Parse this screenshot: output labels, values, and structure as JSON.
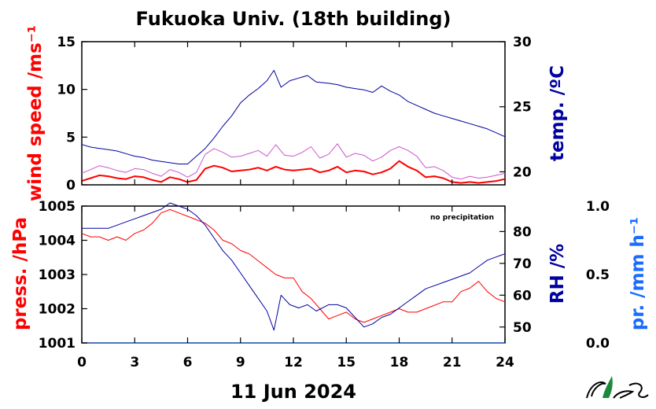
{
  "title": "Fukuoka Univ. (18th building)",
  "date": "11 Jun 2024",
  "note": "no precipitation",
  "colors": {
    "wind": "#ff0000",
    "wind_gust": "#cc55cc",
    "temp": "#00009f",
    "press": "#ff0000",
    "rh": "#00009f",
    "precip": "#1a6cff"
  },
  "chart_data": [
    {
      "type": "line",
      "title": "",
      "xlabel": "",
      "x_ticks": [
        0,
        3,
        6,
        9,
        12,
        15,
        18,
        21,
        24
      ],
      "xlim": [
        0,
        24
      ],
      "left_axis": {
        "label": "wind speed /ms⁻¹",
        "ylim": [
          0,
          15
        ],
        "ticks": [
          0,
          5,
          10,
          15
        ]
      },
      "right_axis": {
        "label": "temp. /ºC",
        "ylim": [
          19,
          30
        ],
        "ticks": [
          20,
          25,
          30
        ]
      },
      "series": [
        {
          "name": "wind speed (mean)",
          "axis": "left",
          "x": [
            0,
            0.5,
            1,
            1.5,
            2,
            2.5,
            3,
            3.5,
            4,
            4.5,
            5,
            5.5,
            6,
            6.5,
            7,
            7.5,
            8,
            8.5,
            9,
            9.5,
            10,
            10.5,
            11,
            11.5,
            12,
            12.5,
            13,
            13.5,
            14,
            14.5,
            15,
            15.5,
            16,
            16.5,
            17,
            17.5,
            18,
            18.5,
            19,
            19.5,
            20,
            20.5,
            21,
            21.5,
            22,
            22.5,
            23,
            23.5,
            24
          ],
          "values": [
            0.4,
            0.7,
            1.0,
            0.9,
            0.7,
            0.6,
            0.9,
            0.8,
            0.5,
            0.3,
            0.8,
            0.6,
            0.3,
            0.5,
            1.7,
            2.0,
            1.8,
            1.4,
            1.5,
            1.6,
            1.8,
            1.5,
            1.9,
            1.6,
            1.5,
            1.6,
            1.7,
            1.3,
            1.5,
            1.9,
            1.3,
            1.5,
            1.4,
            1.1,
            1.3,
            1.7,
            2.5,
            1.9,
            1.5,
            0.8,
            0.9,
            0.7,
            0.3,
            0.2,
            0.3,
            0.2,
            0.3,
            0.4,
            0.6
          ]
        },
        {
          "name": "wind speed (gust)",
          "axis": "left",
          "x": [
            0,
            0.5,
            1,
            1.5,
            2,
            2.5,
            3,
            3.5,
            4,
            4.5,
            5,
            5.5,
            6,
            6.5,
            7,
            7.5,
            8,
            8.5,
            9,
            9.5,
            10,
            10.5,
            11,
            11.5,
            12,
            12.5,
            13,
            13.5,
            14,
            14.5,
            15,
            15.5,
            16,
            16.5,
            17,
            17.5,
            18,
            18.5,
            19,
            19.5,
            20,
            20.5,
            21,
            21.5,
            22,
            22.5,
            23,
            23.5,
            24
          ],
          "values": [
            1.2,
            1.6,
            2.0,
            1.8,
            1.5,
            1.3,
            1.7,
            1.6,
            1.2,
            0.9,
            1.6,
            1.3,
            0.8,
            1.3,
            3.2,
            3.8,
            3.4,
            2.9,
            3.0,
            3.3,
            3.6,
            3.0,
            4.2,
            3.1,
            3.0,
            3.4,
            4.0,
            2.8,
            3.2,
            4.3,
            2.9,
            3.3,
            3.1,
            2.5,
            2.9,
            3.6,
            4.0,
            3.6,
            3.0,
            1.8,
            1.9,
            1.5,
            0.8,
            0.6,
            0.9,
            0.7,
            0.8,
            1.0,
            1.2
          ]
        },
        {
          "name": "temperature",
          "axis": "right",
          "x": [
            0,
            0.5,
            1,
            1.5,
            2,
            2.5,
            3,
            3.5,
            4,
            4.5,
            5,
            5.5,
            6,
            6.5,
            7,
            7.5,
            8,
            8.5,
            9,
            9.5,
            10,
            10.5,
            10.9,
            11.3,
            11.8,
            12.3,
            12.8,
            13.3,
            14,
            14.5,
            15,
            15.5,
            16,
            16.5,
            17,
            17.5,
            18,
            18.5,
            19,
            19.5,
            20,
            20.5,
            21,
            21.5,
            22,
            22.5,
            23,
            23.5,
            24
          ],
          "values": [
            22.1,
            21.9,
            21.8,
            21.7,
            21.6,
            21.4,
            21.2,
            21.1,
            20.9,
            20.8,
            20.7,
            20.6,
            20.6,
            21.2,
            21.8,
            22.6,
            23.5,
            24.3,
            25.3,
            25.9,
            26.4,
            27.0,
            27.8,
            26.5,
            27.0,
            27.2,
            27.4,
            26.9,
            26.8,
            26.7,
            26.5,
            26.4,
            26.3,
            26.1,
            26.6,
            26.2,
            25.9,
            25.4,
            25.1,
            24.8,
            24.5,
            24.3,
            24.1,
            23.9,
            23.7,
            23.5,
            23.3,
            23.0,
            22.7
          ]
        }
      ]
    },
    {
      "type": "line",
      "title": "",
      "xlabel": "",
      "x_ticks": [
        0,
        3,
        6,
        9,
        12,
        15,
        18,
        21,
        24
      ],
      "xlim": [
        0,
        24
      ],
      "left_axis": {
        "label": "press. /hPa",
        "ylim": [
          1001,
          1005
        ],
        "ticks": [
          1001,
          1002,
          1003,
          1004,
          1005
        ]
      },
      "right_axis": {
        "label": "RH /%",
        "ylim": [
          45,
          88
        ],
        "ticks": [
          50,
          60,
          70,
          80
        ]
      },
      "far_right_axis": {
        "label": "pr. /mm h⁻¹",
        "ylim": [
          0,
          1
        ],
        "ticks": [
          0.0,
          0.5,
          1.0
        ]
      },
      "series": [
        {
          "name": "pressure",
          "axis": "left",
          "x": [
            0,
            0.5,
            1,
            1.5,
            2,
            2.5,
            3,
            3.5,
            4,
            4.5,
            5,
            5.5,
            6,
            6.5,
            7,
            7.5,
            8,
            8.5,
            9,
            9.5,
            10,
            10.5,
            11,
            11.5,
            12,
            12.5,
            13,
            13.5,
            14,
            14.5,
            15,
            15.5,
            16,
            16.5,
            17,
            17.5,
            18,
            18.5,
            19,
            19.5,
            20,
            20.5,
            21,
            21.5,
            22,
            22.5,
            23,
            23.5,
            24
          ],
          "values": [
            1004.2,
            1004.1,
            1004.1,
            1004.0,
            1004.1,
            1004.0,
            1004.2,
            1004.3,
            1004.5,
            1004.8,
            1004.9,
            1004.8,
            1004.7,
            1004.6,
            1004.5,
            1004.3,
            1004.0,
            1003.9,
            1003.7,
            1003.6,
            1003.4,
            1003.2,
            1003.0,
            1002.9,
            1002.9,
            1002.5,
            1002.3,
            1002.0,
            1001.7,
            1001.8,
            1001.9,
            1001.7,
            1001.6,
            1001.7,
            1001.8,
            1001.9,
            1002.0,
            1001.9,
            1001.9,
            1002.0,
            1002.1,
            1002.2,
            1002.2,
            1002.5,
            1002.6,
            1002.8,
            1002.5,
            1002.3,
            1002.2
          ]
        },
        {
          "name": "relative humidity",
          "axis": "right",
          "x": [
            0,
            0.5,
            1,
            1.5,
            2,
            2.5,
            3,
            3.5,
            4,
            4.5,
            5,
            5.5,
            6,
            6.5,
            7,
            7.5,
            8,
            8.5,
            9,
            9.5,
            10,
            10.5,
            10.9,
            11.3,
            11.8,
            12.3,
            12.8,
            13.3,
            14,
            14.5,
            15,
            15.5,
            16,
            16.5,
            17,
            17.5,
            18,
            18.5,
            19,
            19.5,
            20,
            20.5,
            21,
            21.5,
            22,
            22.5,
            23,
            23.5,
            24
          ],
          "values": [
            81,
            81,
            81,
            81,
            82,
            83,
            84,
            85,
            86,
            87,
            89,
            88,
            87,
            85,
            82,
            78,
            74,
            71,
            67,
            63,
            59,
            55,
            49,
            60,
            57,
            56,
            57,
            55,
            57,
            57,
            56,
            53,
            50,
            51,
            53,
            54,
            56,
            58,
            60,
            62,
            63,
            64,
            65,
            66,
            67,
            69,
            71,
            72,
            73
          ]
        },
        {
          "name": "precipitation",
          "axis": "far_right",
          "x": [
            0,
            24
          ],
          "values": [
            0,
            0
          ]
        }
      ]
    }
  ]
}
